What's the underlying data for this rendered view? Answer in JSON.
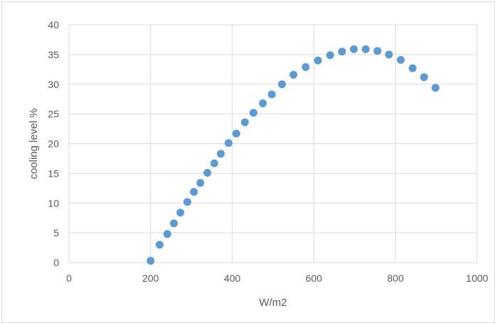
{
  "chart_data": {
    "type": "scatter",
    "title": "",
    "xlabel": "W/m2",
    "ylabel": "cooling level %",
    "xlim": [
      0,
      1000
    ],
    "ylim": [
      0,
      40
    ],
    "x_ticks": [
      "0",
      "200",
      "400",
      "600",
      "800",
      "1000"
    ],
    "y_ticks": [
      "0",
      "5",
      "10",
      "15",
      "20",
      "25",
      "30",
      "35",
      "40"
    ],
    "grid": true,
    "legend": "none",
    "marker_color": "#5b9bd5",
    "grid_color": "#d9d9d9",
    "series": [
      {
        "x": [
          200,
          222,
          241,
          257,
          273,
          290,
          306,
          322,
          339,
          356,
          372,
          391,
          410,
          431,
          452,
          475,
          497,
          522,
          550,
          580,
          610,
          640,
          669,
          698,
          727,
          756,
          784,
          813,
          842,
          870,
          898
        ],
        "y": [
          0.3,
          3.0,
          4.8,
          6.6,
          8.4,
          10.2,
          11.9,
          13.4,
          15.1,
          16.7,
          18.3,
          20.1,
          21.7,
          23.6,
          25.2,
          26.8,
          28.3,
          30.0,
          31.6,
          32.9,
          34.0,
          34.9,
          35.5,
          35.9,
          35.9,
          35.6,
          35.0,
          34.1,
          32.7,
          31.2,
          29.4
        ]
      }
    ]
  }
}
